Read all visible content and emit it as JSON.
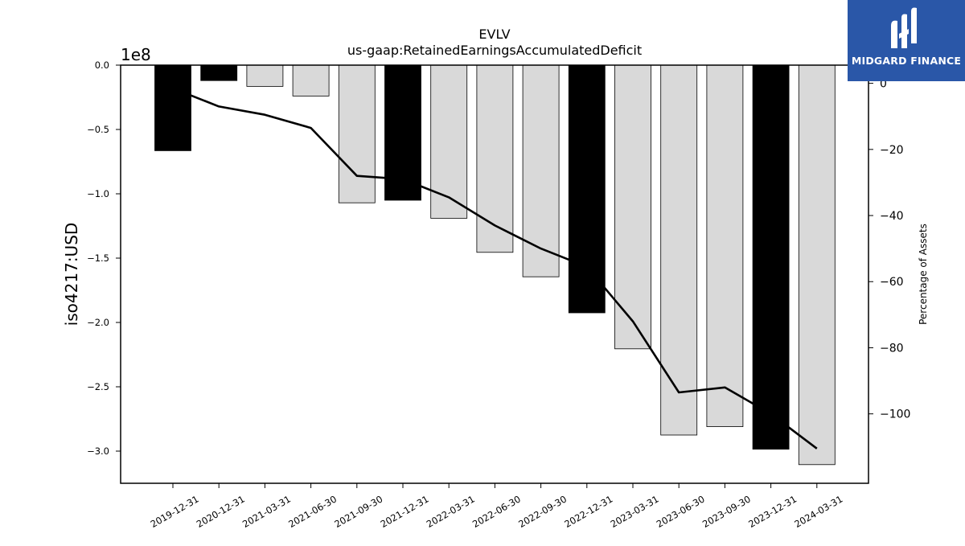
{
  "chart_data": {
    "type": "bar",
    "title": "EVLV",
    "subtitle": "us-gaap:RetainedEarningsAccumulatedDeficit",
    "ylabel": "iso4217:USD",
    "y_offset_label": "1e8",
    "y2label": "Percentage of Assets",
    "ylim": [
      -3.25,
      0.0
    ],
    "y2lim": [
      -121,
      5.5
    ],
    "yticks": [
      "0.0",
      "−0.5",
      "−1.0",
      "−1.5",
      "−2.0",
      "−2.5",
      "−3.0"
    ],
    "ytick_values": [
      0.0,
      -0.5,
      -1.0,
      -1.5,
      -2.0,
      -2.5,
      -3.0
    ],
    "y2ticks": [
      "0",
      "−20",
      "−40",
      "−60",
      "−80",
      "−100"
    ],
    "y2tick_values": [
      0,
      -20,
      -40,
      -60,
      -80,
      -100
    ],
    "categories": [
      "2019-12-31",
      "2020-12-31",
      "2021-03-31",
      "2021-06-30",
      "2021-09-30",
      "2021-12-31",
      "2022-03-31",
      "2022-06-30",
      "2022-09-30",
      "2022-12-31",
      "2023-03-31",
      "2023-06-30",
      "2023-09-30",
      "2023-12-31",
      "2024-03-31"
    ],
    "series": [
      {
        "values": [
          -0.665,
          -0.12,
          -0.165,
          -0.24,
          -1.07,
          -1.05,
          -1.19,
          -1.455,
          -1.645,
          -1.925,
          -2.205,
          -2.875,
          -2.81,
          -2.985,
          -3.105
        ],
        "highlight": [
          true,
          true,
          false,
          false,
          false,
          true,
          false,
          false,
          false,
          true,
          false,
          false,
          false,
          true,
          false
        ],
        "colors": {
          "annual": "#000000",
          "quarterly": "#d9d9d9",
          "edge": "#000000"
        }
      },
      {
        "axis": "right",
        "values": [
          -1.5,
          -7.0,
          -9.5,
          -13.5,
          -28.0,
          -29.0,
          -34.5,
          -43.0,
          -50.0,
          -55.5,
          -72.0,
          -93.5,
          -92.0,
          -100.0,
          -110.5
        ],
        "color": "#000000"
      }
    ],
    "grid": false,
    "legend": "none"
  },
  "brand": {
    "name": "MIDGARD FINANCE",
    "logo_icon": "midgard-logo-icon",
    "background": "#2a57a8"
  }
}
